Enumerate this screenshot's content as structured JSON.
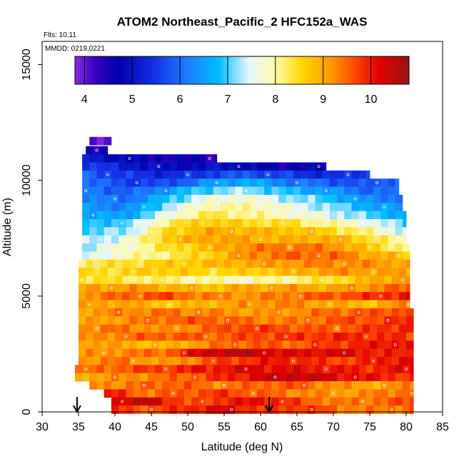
{
  "chart_data": {
    "type": "heatmap",
    "title": "ATOM2 Northeast_Pacific_2 HFC152a_WAS",
    "flights_label": "Flts: 10,11",
    "dates_label": "MMDD: 0219,0221",
    "xlabel": "Latitude (deg N)",
    "ylabel": "Altitude (m)",
    "xlim": [
      30,
      85
    ],
    "ylim": [
      0,
      16000
    ],
    "x_ticks": [
      30,
      35,
      40,
      45,
      50,
      55,
      60,
      65,
      70,
      75,
      80,
      85
    ],
    "y_ticks": [
      0,
      5000,
      10000,
      15000
    ],
    "colorbar": {
      "min": 3.8,
      "max": 10.8,
      "ticks": [
        4,
        5,
        6,
        7,
        8,
        9,
        10
      ]
    },
    "arrows_at_latitude": [
      34.8,
      61.2
    ],
    "layers": [
      {
        "alt": 11700,
        "lat": [
          36.5,
          39.5
        ],
        "values": [
          4.0,
          4.2,
          4.0
        ]
      },
      {
        "alt": 11300,
        "lat": [
          36,
          39
        ],
        "values": [
          4.6,
          4.4,
          4.5
        ]
      },
      {
        "alt": 10950,
        "lat": [
          35.5,
          54
        ],
        "values": [
          5.2,
          4.9,
          4.7,
          4.5,
          4.6,
          4.4
        ]
      },
      {
        "alt": 10600,
        "lat": [
          35.5,
          69
        ],
        "values": [
          5.6,
          5.2,
          4.9,
          4.8,
          5.0,
          4.7,
          4.6,
          4.7
        ]
      },
      {
        "alt": 10250,
        "lat": [
          35.5,
          75
        ],
        "values": [
          5.9,
          5.5,
          5.3,
          5.6,
          5.8,
          5.5,
          5.3,
          5.7
        ]
      },
      {
        "alt": 9900,
        "lat": [
          35.5,
          79
        ],
        "values": [
          6.1,
          5.6,
          5.6,
          6.3,
          6.7,
          6.2,
          5.9,
          5.7,
          6.1
        ]
      },
      {
        "alt": 9550,
        "lat": [
          35.5,
          79
        ],
        "values": [
          6.2,
          5.8,
          6.4,
          7.0,
          7.3,
          6.8,
          6.5,
          6.0,
          5.9
        ]
      },
      {
        "alt": 9200,
        "lat": [
          35.5,
          79.5
        ],
        "values": [
          6.3,
          6.0,
          6.8,
          7.6,
          7.8,
          7.3,
          6.9,
          6.3,
          6.1
        ]
      },
      {
        "alt": 8850,
        "lat": [
          35.5,
          79.5
        ],
        "values": [
          6.4,
          6.2,
          7.2,
          8.0,
          8.0,
          7.7,
          7.2,
          6.7,
          6.3
        ]
      },
      {
        "alt": 8500,
        "lat": [
          35.5,
          80
        ],
        "values": [
          6.6,
          6.5,
          7.6,
          8.3,
          8.1,
          7.8,
          7.5,
          7.0,
          6.5
        ]
      },
      {
        "alt": 8150,
        "lat": [
          35.5,
          80
        ],
        "values": [
          6.8,
          7.0,
          8.2,
          8.7,
          8.5,
          8.4,
          8.0,
          7.6,
          6.9
        ]
      },
      {
        "alt": 7800,
        "lat": [
          35.5,
          80
        ],
        "values": [
          7.0,
          7.2,
          8.5,
          9.0,
          8.9,
          8.8,
          8.6,
          8.0,
          7.3
        ]
      },
      {
        "alt": 7450,
        "lat": [
          35.5,
          80
        ],
        "values": [
          7.2,
          7.6,
          8.7,
          9.1,
          9.0,
          8.9,
          9.0,
          8.5,
          7.7
        ]
      },
      {
        "alt": 7100,
        "lat": [
          35.5,
          80.5
        ],
        "values": [
          7.3,
          7.8,
          8.4,
          8.8,
          9.3,
          9.4,
          9.3,
          8.6,
          8.0
        ]
      },
      {
        "alt": 6750,
        "lat": [
          35.5,
          80.5
        ],
        "values": [
          7.4,
          7.9,
          8.2,
          8.6,
          9.3,
          9.5,
          9.5,
          9.0,
          8.6
        ]
      },
      {
        "alt": 6400,
        "lat": [
          35,
          80.5
        ],
        "values": [
          8.3,
          8.4,
          8.6,
          8.8,
          9.0,
          9.2,
          9.3,
          9.2,
          9.0
        ]
      },
      {
        "alt": 6050,
        "lat": [
          35,
          80.5
        ],
        "values": [
          8.4,
          8.5,
          8.7,
          8.5,
          8.6,
          8.8,
          9.2,
          9.1,
          9.0
        ]
      },
      {
        "alt": 5700,
        "lat": [
          35,
          80.5
        ],
        "values": [
          8.5,
          8.3,
          8.2,
          8.0,
          7.9,
          8.1,
          8.4,
          8.9,
          9.3
        ]
      },
      {
        "alt": 5350,
        "lat": [
          35,
          80.5
        ],
        "values": [
          9.0,
          9.2,
          9.0,
          8.8,
          9.0,
          9.1,
          9.0,
          9.3,
          9.6
        ]
      },
      {
        "alt": 5000,
        "lat": [
          35,
          80.5
        ],
        "values": [
          9.2,
          9.5,
          9.7,
          9.3,
          9.2,
          9.4,
          9.6,
          9.8,
          10.1
        ]
      },
      {
        "alt": 4650,
        "lat": [
          35,
          80.5
        ],
        "values": [
          9.0,
          9.1,
          8.7,
          8.9,
          9.2,
          9.3,
          9.0,
          8.8,
          9.4
        ]
      },
      {
        "alt": 4300,
        "lat": [
          35,
          81
        ],
        "values": [
          9.1,
          9.3,
          9.4,
          9.3,
          9.1,
          9.2,
          9.5,
          9.6,
          9.8
        ]
      },
      {
        "alt": 3950,
        "lat": [
          35,
          81
        ],
        "values": [
          9.0,
          9.2,
          9.5,
          9.6,
          9.4,
          9.3,
          9.6,
          9.7,
          9.9
        ]
      },
      {
        "alt": 3600,
        "lat": [
          35,
          81
        ],
        "values": [
          9.3,
          9.4,
          9.1,
          9.5,
          9.8,
          9.6,
          9.5,
          9.8,
          10.0
        ]
      },
      {
        "alt": 3250,
        "lat": [
          35,
          81
        ],
        "values": [
          9.1,
          9.4,
          9.6,
          9.5,
          9.7,
          9.8,
          9.9,
          9.9,
          9.7
        ]
      },
      {
        "alt": 2900,
        "lat": [
          35,
          81
        ],
        "values": [
          9.2,
          9.0,
          8.8,
          9.3,
          9.6,
          9.5,
          9.8,
          10.0,
          10.2
        ]
      },
      {
        "alt": 2550,
        "lat": [
          35,
          81
        ],
        "values": [
          9.1,
          9.3,
          9.5,
          10.4,
          10.5,
          10.1,
          10.3,
          10.0,
          9.8
        ]
      },
      {
        "alt": 2200,
        "lat": [
          35,
          81
        ],
        "values": [
          9.2,
          9.4,
          9.0,
          9.6,
          9.9,
          10.0,
          9.7,
          9.9,
          10.3
        ]
      },
      {
        "alt": 1850,
        "lat": [
          34.5,
          81
        ],
        "values": [
          9.3,
          9.6,
          9.8,
          10.0,
          10.2,
          10.1,
          10.0,
          9.9,
          10.2
        ]
      },
      {
        "alt": 1500,
        "lat": [
          34.5,
          81
        ],
        "values": [
          9.0,
          9.2,
          9.4,
          9.7,
          10.1,
          10.5,
          10.2,
          10.0,
          9.8
        ]
      },
      {
        "alt": 1150,
        "lat": [
          36.5,
          81
        ],
        "values": [
          9.2,
          9.4,
          9.6,
          9.3,
          9.5,
          9.6,
          9.2,
          9.0,
          9.4
        ]
      },
      {
        "alt": 800,
        "lat": [
          38.5,
          81
        ],
        "values": [
          10.0,
          9.4,
          9.6,
          9.8,
          9.5,
          9.3,
          9.1,
          9.3,
          9.6
        ]
      },
      {
        "alt": 450,
        "lat": [
          39.5,
          81
        ],
        "values": [
          10.2,
          10.4,
          9.5,
          10.0,
          10.1,
          9.6,
          9.3,
          9.5,
          9.7
        ]
      },
      {
        "alt": 100,
        "lat": [
          39.5,
          81
        ],
        "values": [
          9.8,
          9.6,
          10.0,
          10.2,
          9.7,
          9.9,
          9.4,
          9.3,
          9.6
        ]
      }
    ]
  }
}
